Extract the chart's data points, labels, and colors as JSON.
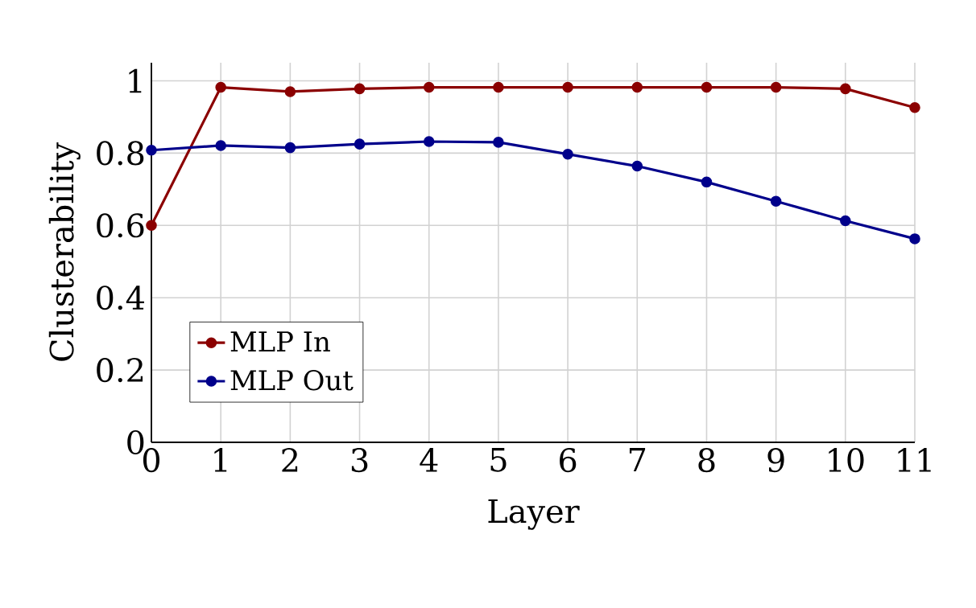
{
  "chart_data": {
    "type": "line",
    "xlabel": "Layer",
    "ylabel": "Clusterability",
    "x": [
      0,
      1,
      2,
      3,
      4,
      5,
      6,
      7,
      8,
      9,
      10,
      11
    ],
    "series": [
      {
        "name": "MLP In",
        "color": "#8b0000",
        "values": [
          0.6,
          0.982,
          0.97,
          0.978,
          0.982,
          0.982,
          0.982,
          0.982,
          0.982,
          0.982,
          0.978,
          0.926
        ]
      },
      {
        "name": "MLP Out",
        "color": "#00008b",
        "values": [
          0.808,
          0.821,
          0.815,
          0.825,
          0.832,
          0.83,
          0.797,
          0.764,
          0.72,
          0.667,
          0.613,
          0.563
        ]
      }
    ],
    "xlim": [
      0,
      11
    ],
    "ylim": [
      0,
      1.05
    ],
    "xticks": [
      0,
      1,
      2,
      3,
      4,
      5,
      6,
      7,
      8,
      9,
      10,
      11
    ],
    "yticks": [
      0,
      0.2,
      0.4,
      0.6,
      0.8,
      1
    ],
    "grid": true,
    "legend": "bottom left",
    "marker": "circle",
    "line_style": "solid"
  }
}
